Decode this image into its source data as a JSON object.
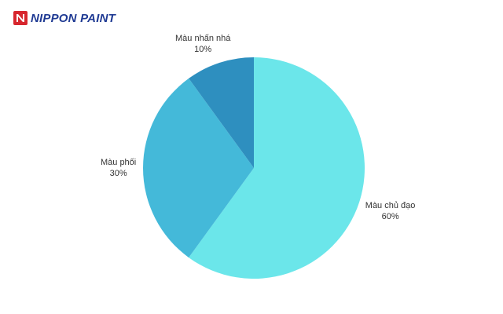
{
  "logo": {
    "text": "NIPPON PAINT",
    "brand_color": "#1f3a93",
    "mark_color": "#d7262e"
  },
  "chart_data": {
    "type": "pie",
    "title": "",
    "categories": [
      "Màu chủ đạo",
      "Màu phối",
      "Màu nhấn nhá"
    ],
    "values": [
      60,
      30,
      10
    ],
    "labels": [
      "60%",
      "30%",
      "10%"
    ],
    "colors": [
      "#6be6ea",
      "#44b9d9",
      "#2e8fbf"
    ],
    "start": "12 o'clock",
    "direction": "clockwise",
    "legend": "none"
  }
}
